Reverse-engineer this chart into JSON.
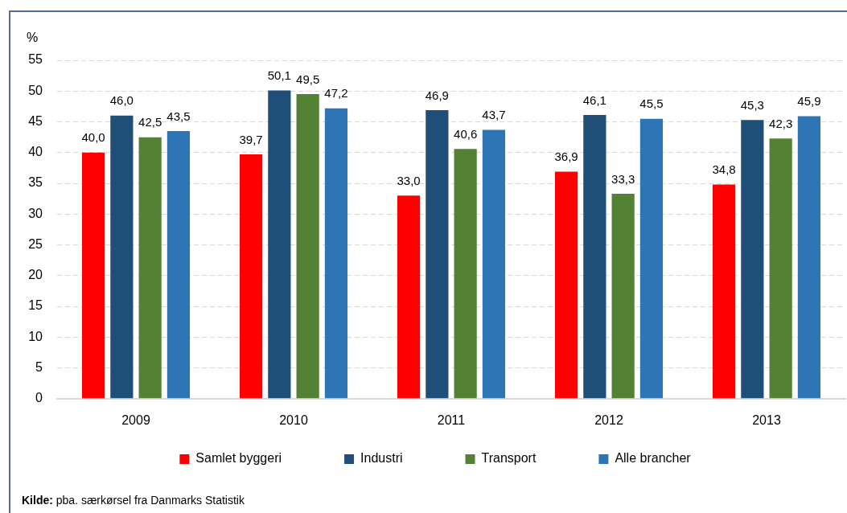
{
  "chart_data": {
    "type": "bar",
    "ylabel": "%",
    "categories": [
      "2009",
      "2010",
      "2011",
      "2012",
      "2013"
    ],
    "series": [
      {
        "name": "Samlet byggeri",
        "color": "#ff0000",
        "values": [
          40.0,
          39.7,
          33.0,
          36.9,
          34.8
        ],
        "value_labels": [
          "40,0",
          "39,7",
          "33,0",
          "36,9",
          "34,8"
        ]
      },
      {
        "name": "Industri",
        "color": "#1f4e79",
        "values": [
          46.0,
          50.1,
          46.9,
          46.1,
          45.3
        ],
        "value_labels": [
          "46,0",
          "50,1",
          "46,9",
          "46,1",
          "45,3"
        ]
      },
      {
        "name": "Transport",
        "color": "#548235",
        "values": [
          42.5,
          49.5,
          40.6,
          33.3,
          42.3
        ],
        "value_labels": [
          "42,5",
          "49,5",
          "40,6",
          "33,3",
          "42,3"
        ]
      },
      {
        "name": "Alle brancher",
        "color": "#2e75b6",
        "values": [
          43.5,
          47.2,
          43.7,
          45.5,
          45.9
        ],
        "value_labels": [
          "43,5",
          "47,2",
          "43,7",
          "45,5",
          "45,9"
        ]
      }
    ],
    "ylim": [
      0,
      55
    ],
    "yticks": [
      0,
      5,
      10,
      15,
      20,
      25,
      30,
      35,
      40,
      45,
      50,
      55
    ],
    "grid": "y",
    "legend": "bottom",
    "annotations": [
      "Kilde: pba. særkørsel fra Danmarks Statistik"
    ]
  }
}
